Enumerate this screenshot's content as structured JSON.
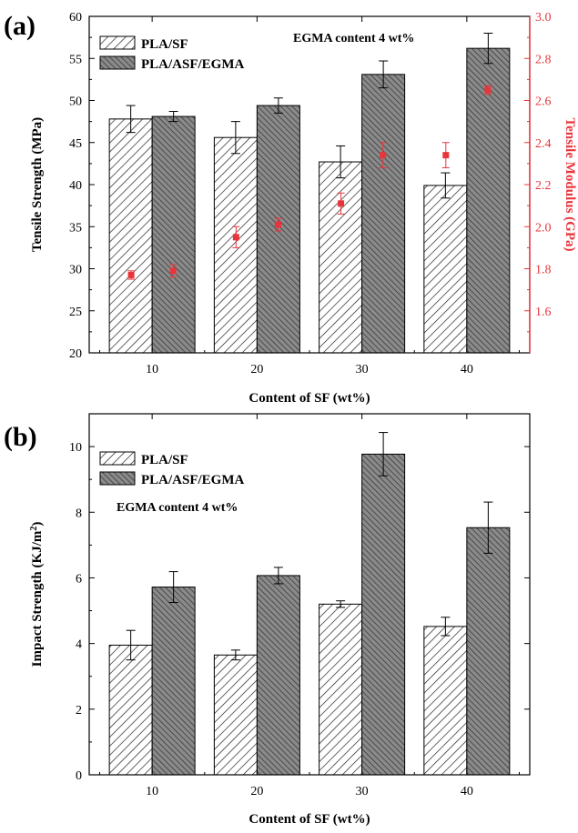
{
  "chart_data": [
    {
      "panel_label": "(a)",
      "type": "bar",
      "categories": [
        "10",
        "20",
        "30",
        "40"
      ],
      "xlabel": "Content of SF (wt%)",
      "ylabel": "Tensile Strength (MPa)",
      "ylim": [
        20,
        60
      ],
      "yticks": [
        "20",
        "25",
        "30",
        "35",
        "40",
        "45",
        "50",
        "55",
        "60"
      ],
      "annotation": "EGMA content 4 wt%",
      "legend_position": "top-left",
      "series": [
        {
          "name": "PLA/SF",
          "pattern": "hatch-forward",
          "values": [
            47.8,
            45.6,
            42.7,
            39.9
          ],
          "errors": [
            1.6,
            1.9,
            1.9,
            1.5
          ]
        },
        {
          "name": "PLA/ASF/EGMA",
          "pattern": "hatch-backward",
          "values": [
            48.1,
            49.4,
            53.1,
            56.2
          ],
          "errors": [
            0.6,
            0.9,
            1.6,
            1.8
          ]
        }
      ],
      "secondary_axis": {
        "ylabel": "Tensile Modulus (GPa)",
        "ylim": [
          1.4,
          3.0
        ],
        "yticks": [
          "1.6",
          "1.8",
          "2.0",
          "2.2",
          "2.4",
          "2.6",
          "2.8",
          "3.0"
        ],
        "color": "#e8353b",
        "series": [
          {
            "type": "scatter",
            "x": [
              8,
              12,
              18,
              22,
              28,
              32,
              38,
              42
            ],
            "values": [
              1.77,
              1.79,
              1.95,
              2.01,
              2.11,
              2.34,
              2.34,
              2.65
            ],
            "errors": [
              0.02,
              0.03,
              0.05,
              0.03,
              0.05,
              0.06,
              0.06,
              0.02
            ]
          }
        ]
      },
      "grid": false
    },
    {
      "panel_label": "(b)",
      "type": "bar",
      "categories": [
        "10",
        "20",
        "30",
        "40"
      ],
      "xlabel": "Content of SF (wt%)",
      "ylabel": "Impact Strength (KJ/m",
      "ylabel_sup": "2",
      "ylabel_close": ")",
      "ylim": [
        0,
        11
      ],
      "yticks": [
        "0",
        "2",
        "4",
        "6",
        "8",
        "10"
      ],
      "annotation": "EGMA content 4 wt%",
      "legend_position": "top-left",
      "series": [
        {
          "name": "PLA/SF",
          "pattern": "hatch-forward",
          "values": [
            3.95,
            3.65,
            5.2,
            4.52
          ],
          "errors": [
            0.45,
            0.15,
            0.1,
            0.28
          ]
        },
        {
          "name": "PLA/ASF/EGMA",
          "pattern": "hatch-backward",
          "values": [
            5.72,
            6.07,
            9.77,
            7.53
          ],
          "errors": [
            0.47,
            0.25,
            0.66,
            0.78
          ]
        }
      ],
      "grid": false
    }
  ]
}
